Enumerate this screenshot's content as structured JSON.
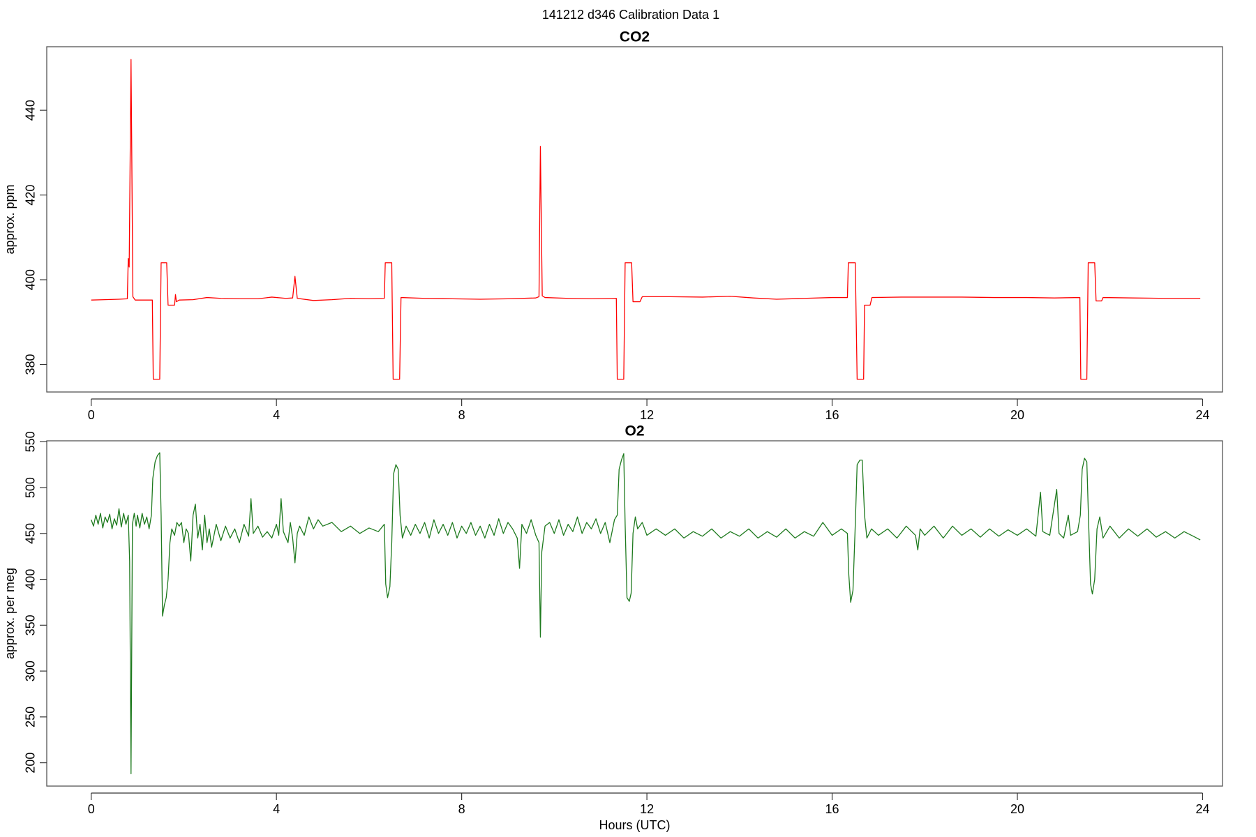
{
  "title": "141212   d346   Calibration Data 1",
  "chart_data": [
    {
      "type": "line",
      "title": "CO2",
      "ylabel": "approx. ppm",
      "color": "#ff0000",
      "xlim": [
        -0.96,
        24.43
      ],
      "xticks": [
        0,
        4,
        8,
        12,
        16,
        20,
        24
      ],
      "ylim": [
        373.5,
        455
      ],
      "yticks": [
        380,
        400,
        420,
        440
      ],
      "x": [
        0,
        0.3,
        0.6,
        0.78,
        0.8,
        0.82,
        0.86,
        0.9,
        0.95,
        1.32,
        1.34,
        1.48,
        1.51,
        1.63,
        1.66,
        1.8,
        1.82,
        1.84,
        1.9,
        2.2,
        2.5,
        2.8,
        3.2,
        3.6,
        3.9,
        4.2,
        4.35,
        4.4,
        4.45,
        4.8,
        5.2,
        5.6,
        6.0,
        6.33,
        6.35,
        6.49,
        6.52,
        6.66,
        6.69,
        7.2,
        7.8,
        8.4,
        9.0,
        9.6,
        9.67,
        9.7,
        9.74,
        9.8,
        10.3,
        10.8,
        11.34,
        11.36,
        11.5,
        11.53,
        11.67,
        11.7,
        11.85,
        11.9,
        12.5,
        13.2,
        13.8,
        14.3,
        14.8,
        15.4,
        16.0,
        16.33,
        16.35,
        16.5,
        16.54,
        16.68,
        16.7,
        16.82,
        16.86,
        17.5,
        18.2,
        18.8,
        19.5,
        20.2,
        20.8,
        21.35,
        21.37,
        21.5,
        21.53,
        21.67,
        21.7,
        21.82,
        21.85,
        22.5,
        23.2,
        23.95
      ],
      "values": [
        395.2,
        395.3,
        395.4,
        395.5,
        405,
        403,
        452,
        396,
        395.2,
        395.2,
        376.5,
        376.5,
        404,
        404,
        394,
        394,
        396.5,
        394.8,
        395.2,
        395.3,
        395.8,
        395.6,
        395.5,
        395.5,
        395.9,
        395.6,
        395.7,
        400.8,
        395.6,
        395.1,
        395.3,
        395.6,
        395.5,
        395.6,
        404,
        404,
        376.5,
        376.5,
        395.8,
        395.6,
        395.5,
        395.4,
        395.5,
        395.7,
        396,
        431.5,
        396.2,
        395.8,
        395.6,
        395.5,
        395.6,
        376.5,
        376.5,
        404,
        404,
        394.8,
        394.8,
        396,
        396,
        395.9,
        396.1,
        395.7,
        395.4,
        395.6,
        395.8,
        395.8,
        404,
        404,
        376.5,
        376.5,
        394,
        394,
        395.8,
        395.9,
        395.9,
        395.9,
        395.8,
        395.8,
        395.7,
        395.8,
        376.5,
        376.5,
        404,
        404,
        395,
        395,
        395.8,
        395.7,
        395.6,
        395.6
      ]
    },
    {
      "type": "line",
      "title": "O2",
      "ylabel": "approx. per meg",
      "xlabel": "Hours (UTC)",
      "color": "#1e7a1e",
      "xlim": [
        -0.96,
        24.43
      ],
      "xticks": [
        0,
        4,
        8,
        12,
        16,
        20,
        24
      ],
      "ylim": [
        174.6,
        551
      ],
      "yticks": [
        200,
        250,
        300,
        350,
        400,
        450,
        500,
        550
      ],
      "x": [
        0,
        0.05,
        0.1,
        0.15,
        0.2,
        0.25,
        0.3,
        0.35,
        0.4,
        0.45,
        0.5,
        0.55,
        0.6,
        0.65,
        0.7,
        0.75,
        0.8,
        0.83,
        0.86,
        0.89,
        0.93,
        0.97,
        1.0,
        1.05,
        1.1,
        1.15,
        1.2,
        1.25,
        1.3,
        1.33,
        1.38,
        1.43,
        1.48,
        1.51,
        1.54,
        1.58,
        1.62,
        1.66,
        1.7,
        1.74,
        1.8,
        1.85,
        1.9,
        1.95,
        2.0,
        2.05,
        2.1,
        2.15,
        2.2,
        2.25,
        2.3,
        2.35,
        2.4,
        2.45,
        2.5,
        2.55,
        2.6,
        2.7,
        2.8,
        2.9,
        3.0,
        3.1,
        3.2,
        3.3,
        3.4,
        3.45,
        3.5,
        3.6,
        3.7,
        3.8,
        3.9,
        4.0,
        4.05,
        4.1,
        4.15,
        4.25,
        4.3,
        4.35,
        4.4,
        4.45,
        4.5,
        4.6,
        4.7,
        4.8,
        4.9,
        5.0,
        5.2,
        5.4,
        5.6,
        5.8,
        6.0,
        6.2,
        6.33,
        6.36,
        6.4,
        6.45,
        6.49,
        6.53,
        6.58,
        6.63,
        6.67,
        6.72,
        6.8,
        6.9,
        7.0,
        7.1,
        7.2,
        7.3,
        7.4,
        7.5,
        7.6,
        7.7,
        7.8,
        7.9,
        8.0,
        8.1,
        8.2,
        8.3,
        8.4,
        8.5,
        8.6,
        8.7,
        8.8,
        8.9,
        9.0,
        9.1,
        9.2,
        9.25,
        9.3,
        9.4,
        9.5,
        9.6,
        9.67,
        9.7,
        9.73,
        9.8,
        9.9,
        10.0,
        10.1,
        10.2,
        10.3,
        10.4,
        10.5,
        10.6,
        10.7,
        10.8,
        10.9,
        11.0,
        11.1,
        11.2,
        11.3,
        11.36,
        11.4,
        11.45,
        11.5,
        11.53,
        11.57,
        11.62,
        11.66,
        11.7,
        11.75,
        11.8,
        11.9,
        12.0,
        12.2,
        12.4,
        12.6,
        12.8,
        13.0,
        13.2,
        13.4,
        13.6,
        13.8,
        14.0,
        14.2,
        14.4,
        14.6,
        14.8,
        15.0,
        15.2,
        15.4,
        15.6,
        15.8,
        16.0,
        16.2,
        16.33,
        16.36,
        16.4,
        16.45,
        16.5,
        16.54,
        16.6,
        16.65,
        16.7,
        16.75,
        16.85,
        17.0,
        17.2,
        17.4,
        17.6,
        17.8,
        17.85,
        17.9,
        18.0,
        18.2,
        18.4,
        18.6,
        18.8,
        19.0,
        19.2,
        19.4,
        19.6,
        19.8,
        20.0,
        20.2,
        20.4,
        20.5,
        20.55,
        20.7,
        20.85,
        20.9,
        21.0,
        21.1,
        21.15,
        21.3,
        21.36,
        21.4,
        21.45,
        21.5,
        21.54,
        21.58,
        21.62,
        21.67,
        21.72,
        21.78,
        21.85,
        22.0,
        22.2,
        22.4,
        22.6,
        22.8,
        23.0,
        23.2,
        23.4,
        23.6,
        23.8,
        23.95
      ],
      "values": [
        465,
        458,
        470,
        460,
        472,
        456,
        468,
        462,
        471,
        455,
        466,
        459,
        477,
        457,
        472,
        460,
        470,
        420,
        188,
        460,
        472,
        458,
        470,
        456,
        472,
        460,
        468,
        455,
        470,
        510,
        528,
        535,
        538,
        470,
        360,
        372,
        380,
        400,
        440,
        455,
        448,
        462,
        458,
        462,
        440,
        455,
        450,
        420,
        470,
        482,
        445,
        460,
        432,
        470,
        440,
        455,
        435,
        460,
        442,
        458,
        445,
        455,
        440,
        460,
        447,
        488,
        450,
        458,
        446,
        452,
        445,
        460,
        448,
        488,
        452,
        440,
        462,
        445,
        418,
        450,
        458,
        448,
        468,
        455,
        465,
        458,
        462,
        452,
        458,
        450,
        456,
        452,
        460,
        395,
        380,
        392,
        440,
        515,
        525,
        520,
        470,
        445,
        458,
        448,
        460,
        450,
        462,
        445,
        465,
        450,
        460,
        448,
        462,
        445,
        458,
        450,
        462,
        448,
        458,
        445,
        460,
        448,
        466,
        450,
        462,
        455,
        445,
        412,
        460,
        450,
        465,
        448,
        440,
        337,
        430,
        458,
        462,
        450,
        465,
        448,
        460,
        452,
        468,
        450,
        462,
        455,
        466,
        450,
        462,
        440,
        465,
        470,
        520,
        530,
        537,
        460,
        380,
        376,
        385,
        450,
        468,
        455,
        462,
        448,
        455,
        448,
        455,
        445,
        452,
        447,
        455,
        445,
        452,
        447,
        455,
        445,
        452,
        446,
        455,
        445,
        452,
        447,
        462,
        448,
        455,
        450,
        405,
        375,
        388,
        460,
        525,
        530,
        530,
        470,
        445,
        455,
        448,
        455,
        445,
        458,
        448,
        432,
        455,
        448,
        458,
        445,
        458,
        448,
        455,
        446,
        455,
        447,
        454,
        448,
        455,
        447,
        495,
        452,
        448,
        498,
        450,
        445,
        470,
        448,
        452,
        470,
        520,
        532,
        528,
        460,
        395,
        384,
        400,
        455,
        468,
        445,
        458,
        445,
        455,
        447,
        455,
        446,
        452,
        445,
        452,
        447,
        443
      ]
    }
  ]
}
